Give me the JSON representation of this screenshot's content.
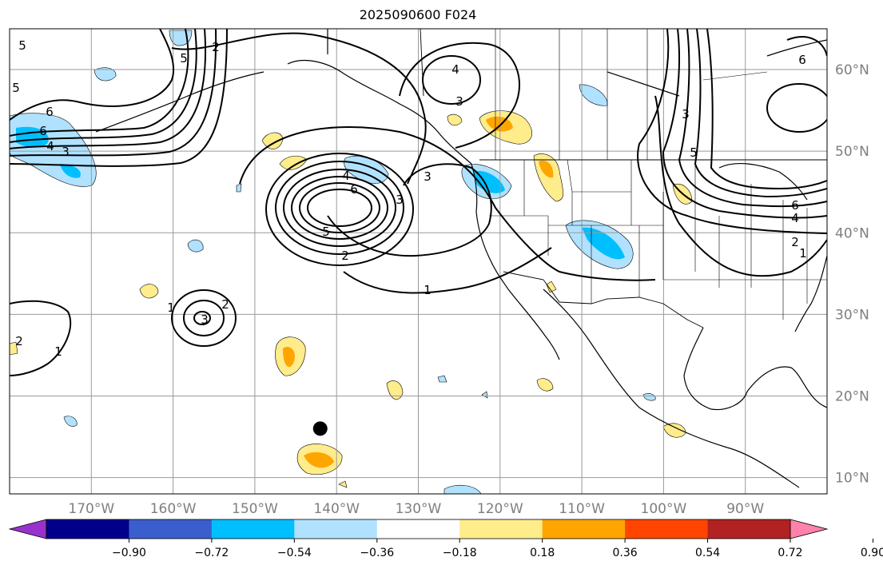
{
  "title": "2025090600 F024",
  "map": {
    "lon_range": [
      -180,
      -80
    ],
    "lat_range": [
      8,
      65
    ],
    "longitude_ticks": [
      {
        "value": -170,
        "label": "170°W"
      },
      {
        "value": -160,
        "label": "160°W"
      },
      {
        "value": -150,
        "label": "150°W"
      },
      {
        "value": -140,
        "label": "140°W"
      },
      {
        "value": -130,
        "label": "130°W"
      },
      {
        "value": -120,
        "label": "120°W"
      },
      {
        "value": -110,
        "label": "110°W"
      },
      {
        "value": -100,
        "label": "100°W"
      },
      {
        "value": -90,
        "label": "90°W"
      }
    ],
    "latitude_ticks": [
      {
        "value": 60,
        "label": "60°N"
      },
      {
        "value": 50,
        "label": "50°N"
      },
      {
        "value": 40,
        "label": "40°N"
      },
      {
        "value": 30,
        "label": "30°N"
      },
      {
        "value": 20,
        "label": "20°N"
      },
      {
        "value": 10,
        "label": "10°N"
      }
    ],
    "gridlines": true,
    "contour_labels": [
      "1",
      "2",
      "3",
      "4",
      "5",
      "6"
    ],
    "marker": {
      "lon": -142,
      "lat": 16,
      "symbol": "filled-circle",
      "color": "#000000"
    }
  },
  "colorbar": {
    "ticks": [
      "−0.90",
      "−0.72",
      "−0.54",
      "−0.36",
      "−0.18",
      "0.18",
      "0.36",
      "0.54",
      "0.72",
      "0.90"
    ],
    "colors": [
      "#9932cc",
      "#00008b",
      "#3a5fcd",
      "#00bfff",
      "#b0e2ff",
      "#ffffff",
      "#ffec8b",
      "#ffa500",
      "#ff4500",
      "#b22222",
      "#ff82ab"
    ],
    "extend": "both"
  }
}
